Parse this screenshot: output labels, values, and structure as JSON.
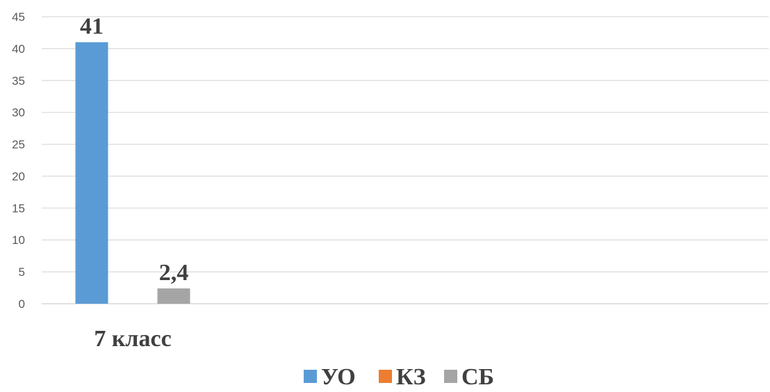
{
  "chart_data": {
    "type": "bar",
    "categories": [
      "7 класс"
    ],
    "series": [
      {
        "name": "УО",
        "color": "#5b9bd5",
        "values": [
          41
        ],
        "labels": [
          "41"
        ]
      },
      {
        "name": "КЗ",
        "color": "#ed7d31",
        "values": [
          0
        ],
        "labels": [
          ""
        ]
      },
      {
        "name": "СБ",
        "color": "#a5a5a5",
        "values": [
          2.4
        ],
        "labels": [
          "2,4"
        ]
      }
    ],
    "ylim": [
      0,
      45
    ],
    "yticks": [
      0,
      5,
      10,
      15,
      20,
      25,
      30,
      35,
      40,
      45
    ],
    "grid": true,
    "legend": "bottom",
    "title": "",
    "xlabel": "",
    "ylabel": ""
  }
}
